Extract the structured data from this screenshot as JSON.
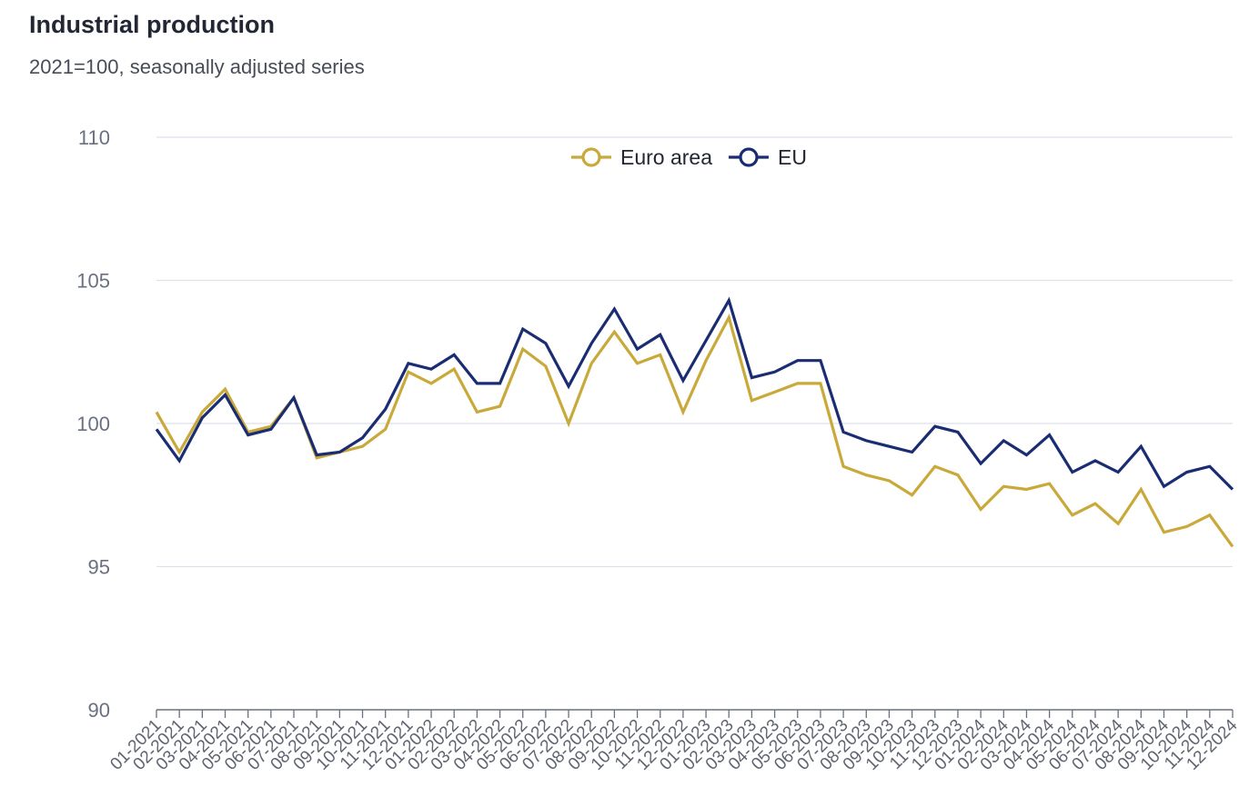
{
  "title": "Industrial production",
  "subtitle": "2021=100, seasonally adjusted series",
  "colors": {
    "euro_area": "#c9a93a",
    "eu": "#1b2d72",
    "grid": "#dde1ec",
    "axis": "#6b7080"
  },
  "chart_data": {
    "type": "line",
    "title": "Industrial production",
    "subtitle": "2021=100, seasonally adjusted series",
    "xlabel": "",
    "ylabel": "",
    "ylim": [
      90,
      110
    ],
    "yticks": [
      90,
      95,
      100,
      105,
      110
    ],
    "grid": true,
    "legend_position": "top-center",
    "categories": [
      "01-2021",
      "02-2021",
      "03-2021",
      "04-2021",
      "05-2021",
      "06-2021",
      "07-2021",
      "08-2021",
      "09-2021",
      "10-2021",
      "11-2021",
      "12-2021",
      "01-2022",
      "02-2022",
      "03-2022",
      "04-2022",
      "05-2022",
      "06-2022",
      "07-2022",
      "08-2022",
      "09-2022",
      "10-2022",
      "11-2022",
      "12-2022",
      "01-2023",
      "02-2023",
      "03-2023",
      "04-2023",
      "05-2023",
      "06-2023",
      "07-2023",
      "08-2023",
      "09-2023",
      "10-2023",
      "11-2023",
      "12-2023",
      "01-2024",
      "02-2024",
      "03-2024",
      "04-2024",
      "05-2024",
      "06-2024",
      "07-2024",
      "08-2024",
      "09-2024",
      "10-2024",
      "11-2024",
      "12-2024"
    ],
    "series": [
      {
        "name": "Euro area",
        "color": "#c9a93a",
        "values": [
          100.4,
          99.0,
          100.4,
          101.2,
          99.7,
          99.9,
          100.9,
          98.8,
          99.0,
          99.2,
          99.8,
          101.8,
          101.4,
          101.9,
          100.4,
          100.6,
          102.6,
          102.0,
          100.0,
          102.1,
          103.2,
          102.1,
          102.4,
          100.4,
          102.2,
          103.7,
          100.8,
          101.1,
          101.4,
          101.4,
          98.5,
          98.2,
          98.0,
          97.5,
          98.5,
          98.2,
          97.0,
          97.8,
          97.7,
          97.9,
          96.8,
          97.2,
          96.5,
          97.7,
          96.2,
          96.4,
          96.8,
          95.7
        ]
      },
      {
        "name": "EU",
        "color": "#1b2d72",
        "values": [
          99.8,
          98.7,
          100.2,
          101.0,
          99.6,
          99.8,
          100.9,
          98.9,
          99.0,
          99.5,
          100.5,
          102.1,
          101.9,
          102.4,
          101.4,
          101.4,
          103.3,
          102.8,
          101.3,
          102.8,
          104.0,
          102.6,
          103.1,
          101.5,
          102.9,
          104.3,
          101.6,
          101.8,
          102.2,
          102.2,
          99.7,
          99.4,
          99.2,
          99.0,
          99.9,
          99.7,
          98.6,
          99.4,
          98.9,
          99.6,
          98.3,
          98.7,
          98.3,
          99.2,
          97.8,
          98.3,
          98.5,
          97.7
        ]
      }
    ]
  }
}
